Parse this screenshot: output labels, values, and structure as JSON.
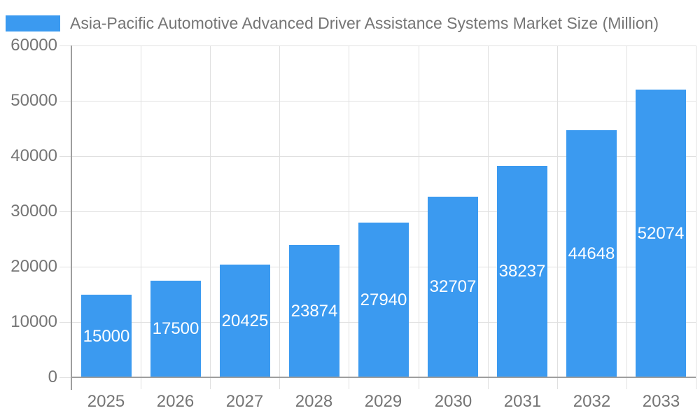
{
  "legend": {
    "label": "Asia-Pacific Automotive Advanced Driver Assistance Systems Market Size (Million)"
  },
  "chart_data": {
    "type": "bar",
    "title": "Asia-Pacific Automotive Advanced Driver Assistance Systems Market Size (Million)",
    "series_name": "Asia-Pacific Automotive Advanced Driver Assistance Systems Market Size (Million)",
    "categories": [
      "2025",
      "2026",
      "2027",
      "2028",
      "2029",
      "2030",
      "2031",
      "2032",
      "2033"
    ],
    "values": [
      15000,
      17500,
      20425,
      23874,
      27940,
      32707,
      38237,
      44648,
      52074
    ],
    "xlabel": "",
    "ylabel": "",
    "ylim": [
      0,
      60000
    ],
    "yticks": [
      0,
      10000,
      20000,
      30000,
      40000,
      50000,
      60000
    ],
    "grid": true,
    "legend_position": "top-left",
    "value_label_position": "inside-center",
    "colors": {
      "bar": "#3B9AF0",
      "axis_line": "#9E9E9E",
      "gridline": "#E0E0E0",
      "tick_label": "#757575",
      "title": "#757575",
      "value_label": "#FFFFFF",
      "background": "#FFFFFF"
    }
  }
}
